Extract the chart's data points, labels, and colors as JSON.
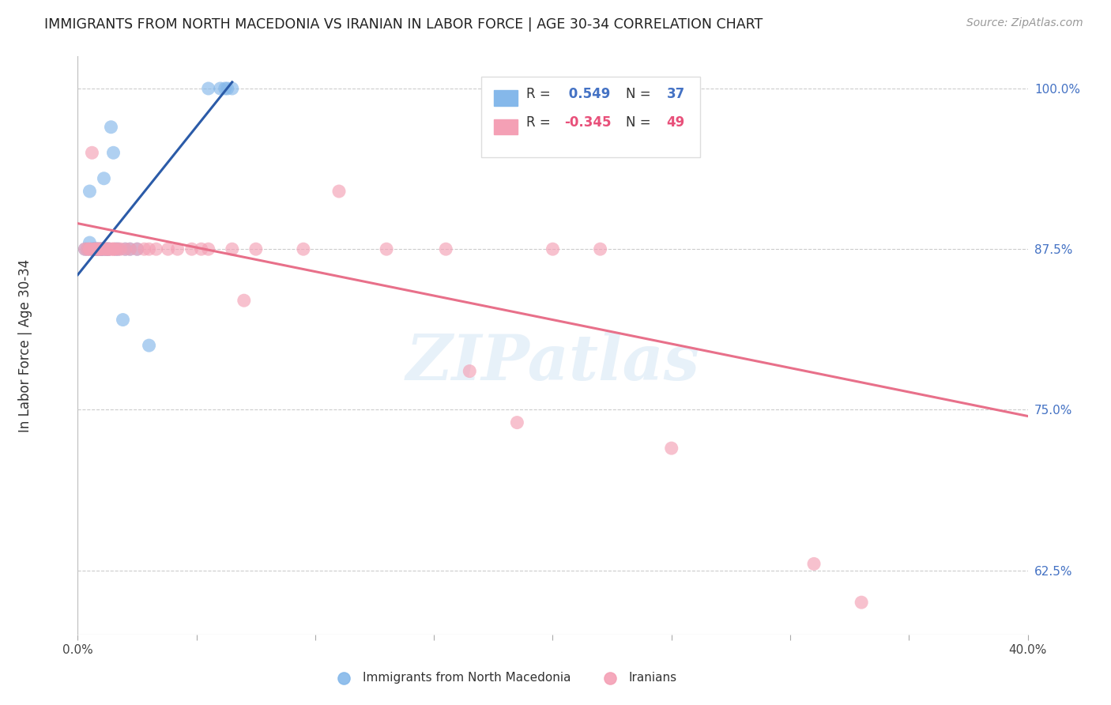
{
  "title": "IMMIGRANTS FROM NORTH MACEDONIA VS IRANIAN IN LABOR FORCE | AGE 30-34 CORRELATION CHART",
  "source": "Source: ZipAtlas.com",
  "ylabel": "In Labor Force | Age 30-34",
  "watermark": "ZIPatlas",
  "xlim": [
    0.0,
    0.4
  ],
  "ylim": [
    0.575,
    1.025
  ],
  "right_yticks": [
    1.0,
    0.875,
    0.75,
    0.625
  ],
  "right_yticklabels": [
    "100.0%",
    "87.5%",
    "75.0%",
    "62.5%"
  ],
  "xticks": [
    0.0,
    0.05,
    0.1,
    0.15,
    0.2,
    0.25,
    0.3,
    0.35,
    0.4
  ],
  "blue_R": 0.549,
  "blue_N": 37,
  "pink_R": -0.345,
  "pink_N": 49,
  "blue_color": "#85B8EA",
  "pink_color": "#F4A0B5",
  "blue_line_color": "#2B5BA8",
  "pink_line_color": "#E8708A",
  "legend_label_blue": "Immigrants from North Macedonia",
  "legend_label_pink": "Iranians",
  "blue_points_x": [
    0.003,
    0.004,
    0.005,
    0.005,
    0.006,
    0.006,
    0.007,
    0.007,
    0.007,
    0.008,
    0.008,
    0.008,
    0.009,
    0.009,
    0.01,
    0.01,
    0.01,
    0.011,
    0.011,
    0.012,
    0.012,
    0.013,
    0.013,
    0.014,
    0.015,
    0.016,
    0.017,
    0.019,
    0.02,
    0.022,
    0.025,
    0.03,
    0.055,
    0.06,
    0.062,
    0.063,
    0.065
  ],
  "blue_points_y": [
    0.875,
    0.875,
    0.92,
    0.88,
    0.875,
    0.875,
    0.875,
    0.875,
    0.875,
    0.875,
    0.875,
    0.875,
    0.875,
    0.875,
    0.875,
    0.875,
    0.875,
    0.875,
    0.93,
    0.875,
    0.875,
    0.875,
    0.875,
    0.97,
    0.95,
    0.875,
    0.875,
    0.82,
    0.875,
    0.875,
    0.875,
    0.8,
    1.0,
    1.0,
    1.0,
    1.0,
    1.0
  ],
  "pink_points_x": [
    0.003,
    0.004,
    0.005,
    0.005,
    0.006,
    0.007,
    0.007,
    0.008,
    0.008,
    0.009,
    0.009,
    0.01,
    0.01,
    0.011,
    0.012,
    0.012,
    0.013,
    0.013,
    0.014,
    0.015,
    0.015,
    0.016,
    0.017,
    0.018,
    0.02,
    0.022,
    0.025,
    0.028,
    0.03,
    0.033,
    0.038,
    0.042,
    0.048,
    0.052,
    0.055,
    0.065,
    0.07,
    0.075,
    0.095,
    0.11,
    0.13,
    0.155,
    0.165,
    0.185,
    0.2,
    0.22,
    0.25,
    0.31,
    0.33
  ],
  "pink_points_y": [
    0.875,
    0.875,
    0.875,
    0.875,
    0.95,
    0.875,
    0.875,
    0.875,
    0.875,
    0.875,
    0.875,
    0.875,
    0.875,
    0.875,
    0.875,
    0.875,
    0.875,
    0.875,
    0.875,
    0.875,
    0.875,
    0.875,
    0.875,
    0.875,
    0.875,
    0.875,
    0.875,
    0.875,
    0.875,
    0.875,
    0.875,
    0.875,
    0.875,
    0.875,
    0.875,
    0.875,
    0.835,
    0.875,
    0.875,
    0.92,
    0.875,
    0.875,
    0.78,
    0.74,
    0.875,
    0.875,
    0.72,
    0.63,
    0.6
  ],
  "blue_trend_x": [
    0.0,
    0.065
  ],
  "blue_trend_y": [
    0.855,
    1.005
  ],
  "pink_trend_x": [
    0.0,
    0.4
  ],
  "pink_trend_y": [
    0.895,
    0.745
  ]
}
